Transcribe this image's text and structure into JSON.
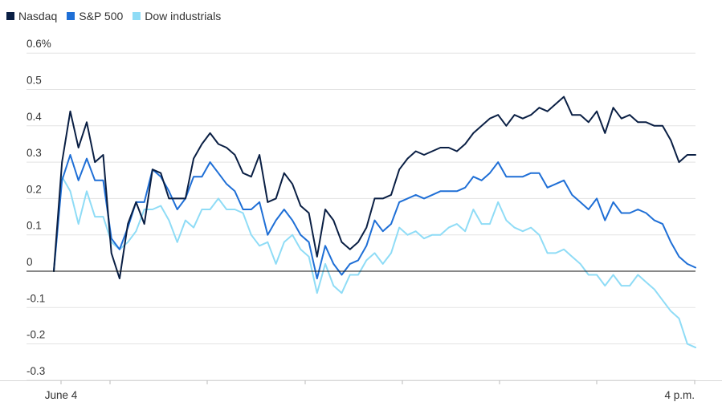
{
  "legend": [
    {
      "label": "Nasdaq",
      "color": "#0a1f44"
    },
    {
      "label": "S&P 500",
      "color": "#1f6fd6"
    },
    {
      "label": "Dow industrials",
      "color": "#8fdcf6"
    }
  ],
  "chart_data": {
    "type": "line",
    "x_tick_labels": [
      "June 4",
      "4 p.m."
    ],
    "y_tick_labels": [
      "0.6%",
      "0.5",
      "0.4",
      "0.3",
      "0.2",
      "0.1",
      "0",
      "-0.1",
      "-0.2",
      "-0.3"
    ],
    "y_ticks": [
      0.6,
      0.5,
      0.4,
      0.3,
      0.2,
      0.1,
      0,
      -0.1,
      -0.2,
      -0.3
    ],
    "ylim": [
      -0.3,
      0.6
    ],
    "xlim": [
      0,
      1
    ],
    "grid": true,
    "legend_position": "top-left",
    "series": [
      {
        "name": "Nasdaq",
        "color": "#0a1f44",
        "values": [
          0,
          0.3,
          0.44,
          0.34,
          0.41,
          0.3,
          0.32,
          0.05,
          -0.02,
          0.13,
          0.19,
          0.13,
          0.28,
          0.27,
          0.2,
          0.2,
          0.2,
          0.31,
          0.35,
          0.38,
          0.35,
          0.34,
          0.32,
          0.27,
          0.26,
          0.32,
          0.19,
          0.2,
          0.27,
          0.24,
          0.18,
          0.16,
          0.04,
          0.17,
          0.14,
          0.08,
          0.06,
          0.08,
          0.12,
          0.2,
          0.2,
          0.21,
          0.28,
          0.31,
          0.33,
          0.32,
          0.33,
          0.34,
          0.34,
          0.33,
          0.35,
          0.38,
          0.4,
          0.42,
          0.43,
          0.4,
          0.43,
          0.42,
          0.43,
          0.45,
          0.44,
          0.46,
          0.48,
          0.43,
          0.43,
          0.41,
          0.44,
          0.38,
          0.45,
          0.42,
          0.43,
          0.41,
          0.41,
          0.4,
          0.4,
          0.36,
          0.3,
          0.32,
          0.32
        ]
      },
      {
        "name": "S&P 500",
        "color": "#1f6fd6",
        "values": [
          0,
          0.25,
          0.32,
          0.25,
          0.31,
          0.25,
          0.25,
          0.09,
          0.06,
          0.12,
          0.19,
          0.19,
          0.28,
          0.26,
          0.22,
          0.17,
          0.2,
          0.26,
          0.26,
          0.3,
          0.27,
          0.24,
          0.22,
          0.17,
          0.17,
          0.19,
          0.1,
          0.14,
          0.17,
          0.14,
          0.1,
          0.08,
          -0.02,
          0.07,
          0.02,
          -0.01,
          0.02,
          0.03,
          0.07,
          0.14,
          0.11,
          0.13,
          0.19,
          0.2,
          0.21,
          0.2,
          0.21,
          0.22,
          0.22,
          0.22,
          0.23,
          0.26,
          0.25,
          0.27,
          0.3,
          0.26,
          0.26,
          0.26,
          0.27,
          0.27,
          0.23,
          0.24,
          0.25,
          0.21,
          0.19,
          0.17,
          0.2,
          0.14,
          0.19,
          0.16,
          0.16,
          0.17,
          0.16,
          0.14,
          0.13,
          0.08,
          0.04,
          0.02,
          0.01
        ]
      },
      {
        "name": "Dow industrials",
        "color": "#8fdcf6",
        "values": [
          0,
          0.26,
          0.22,
          0.13,
          0.22,
          0.15,
          0.15,
          0.08,
          0.06,
          0.08,
          0.11,
          0.17,
          0.17,
          0.18,
          0.14,
          0.08,
          0.14,
          0.12,
          0.17,
          0.17,
          0.2,
          0.17,
          0.17,
          0.16,
          0.1,
          0.07,
          0.08,
          0.02,
          0.08,
          0.1,
          0.06,
          0.04,
          -0.06,
          0.02,
          -0.04,
          -0.06,
          -0.01,
          -0.01,
          0.03,
          0.05,
          0.02,
          0.05,
          0.12,
          0.1,
          0.11,
          0.09,
          0.1,
          0.1,
          0.12,
          0.13,
          0.11,
          0.17,
          0.13,
          0.13,
          0.19,
          0.14,
          0.12,
          0.11,
          0.12,
          0.1,
          0.05,
          0.05,
          0.06,
          0.04,
          0.02,
          -0.01,
          -0.01,
          -0.04,
          -0.01,
          -0.04,
          -0.04,
          -0.01,
          -0.03,
          -0.05,
          -0.08,
          -0.11,
          -0.13,
          -0.2,
          -0.21
        ]
      }
    ]
  }
}
